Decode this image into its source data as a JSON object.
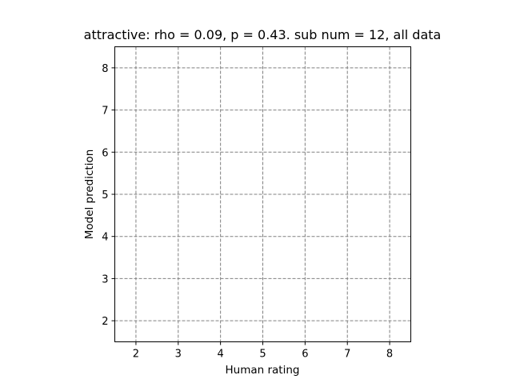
{
  "chart_data": {
    "type": "scatter",
    "title": "attractive: rho = 0.09, p = 0.43. sub num = 12, all data",
    "xlabel": "Human rating",
    "ylabel": "Model prediction",
    "xlim": [
      1.5,
      8.5
    ],
    "ylim": [
      1.5,
      8.5
    ],
    "xticks": [
      "2",
      "3",
      "4",
      "5",
      "6",
      "7",
      "8"
    ],
    "yticks": [
      "2",
      "3",
      "4",
      "5",
      "6",
      "7",
      "8"
    ],
    "grid": true,
    "series": [
      {
        "x": [],
        "y": []
      }
    ]
  },
  "colors": {
    "grid": "#808080",
    "axes": "#000000",
    "background": "#ffffff"
  }
}
